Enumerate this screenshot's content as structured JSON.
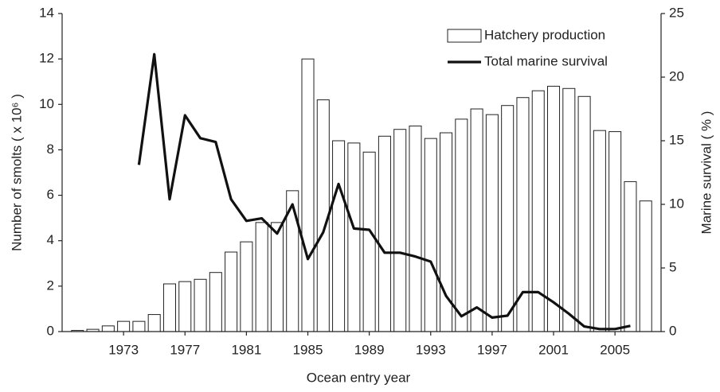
{
  "chart_data": {
    "type": "bar",
    "x_label": "Ocean entry year",
    "y_label": "Number of smolts ( x 10⁶ )",
    "y2_label": "Marine survival ( % )",
    "x": [
      1970,
      1971,
      1972,
      1973,
      1974,
      1975,
      1976,
      1977,
      1978,
      1979,
      1980,
      1981,
      1982,
      1983,
      1984,
      1985,
      1986,
      1987,
      1988,
      1989,
      1990,
      1991,
      1992,
      1993,
      1994,
      1995,
      1996,
      1997,
      1998,
      1999,
      2000,
      2001,
      2002,
      2003,
      2004,
      2005,
      2006,
      2007
    ],
    "xlim": [
      1969,
      2008
    ],
    "xticks": [
      1973,
      1977,
      1981,
      1985,
      1989,
      1993,
      1997,
      2001,
      2005
    ],
    "ylim": [
      0,
      14
    ],
    "yticks": [
      0,
      2,
      4,
      6,
      8,
      10,
      12,
      14
    ],
    "y2lim": [
      0,
      25
    ],
    "y2ticks": [
      0,
      5,
      10,
      15,
      20,
      25
    ],
    "legend": "top-right",
    "series": [
      {
        "name": "Hatchery production",
        "type": "bar",
        "color": "#ffffff",
        "values": [
          0.05,
          0.1,
          0.25,
          0.45,
          0.45,
          0.75,
          2.1,
          2.2,
          2.3,
          2.6,
          3.5,
          3.95,
          4.8,
          4.8,
          6.2,
          12.0,
          10.2,
          8.4,
          8.3,
          7.9,
          8.6,
          8.9,
          9.05,
          8.5,
          8.75,
          9.35,
          9.8,
          9.55,
          9.95,
          10.3,
          10.6,
          10.8,
          10.7,
          10.35,
          8.85,
          8.8,
          6.6,
          5.75
        ]
      },
      {
        "name": "Total marine survival",
        "type": "line",
        "color": "#111111",
        "axis": "y2",
        "values": [
          null,
          null,
          null,
          null,
          13.1,
          21.8,
          10.4,
          17.0,
          15.2,
          14.9,
          10.4,
          8.7,
          8.9,
          7.7,
          10.0,
          5.7,
          7.8,
          11.6,
          8.1,
          8.0,
          6.2,
          6.2,
          5.9,
          5.5,
          2.8,
          1.2,
          1.9,
          1.1,
          1.25,
          3.1,
          3.1,
          2.3,
          1.4,
          0.4,
          0.2,
          0.2,
          0.45,
          null
        ]
      }
    ]
  }
}
